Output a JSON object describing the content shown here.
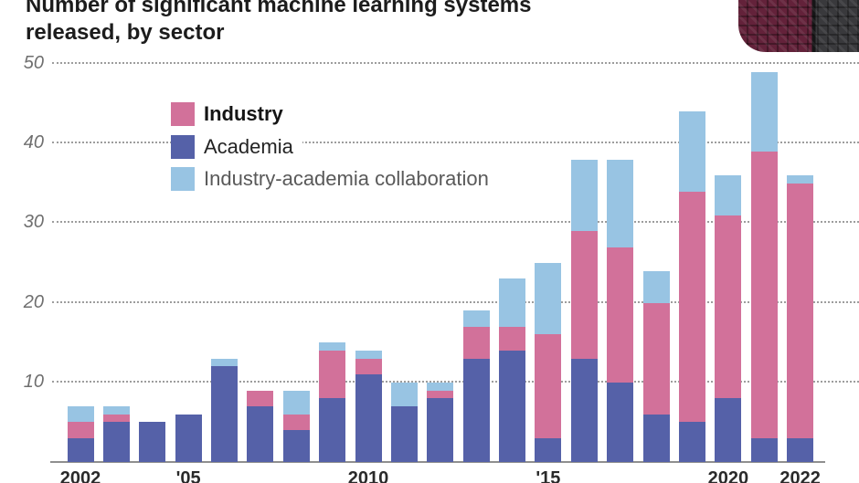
{
  "title": {
    "line1": "Number of significant machine learning systems",
    "line2": "released, by sector"
  },
  "colors": {
    "industry": "#d2719a",
    "academia": "#5561a8",
    "collaboration": "#98c4e3",
    "grid_dots": "#9d9d9d",
    "axis_line": "#8f8f8f",
    "y_label": "#6f6f6f",
    "x_label": "#2a2a2a",
    "title_text": "#1c1c1c",
    "logo_maroon": "#63223a",
    "logo_dark": "#39393c"
  },
  "legend": {
    "items": [
      {
        "label": "Industry",
        "color_key": "industry"
      },
      {
        "label": "Academia",
        "color_key": "academia"
      },
      {
        "label": "Industry-academia collaboration",
        "color_key": "collaboration"
      }
    ]
  },
  "chart_data": {
    "type": "bar",
    "stacked": true,
    "title": "Number of significant machine learning systems released, by sector",
    "xlabel": "",
    "ylabel": "",
    "ylim": [
      0,
      50
    ],
    "y_ticks": [
      10,
      20,
      30,
      40,
      50
    ],
    "gridlines": "dotted-horizontal",
    "legend_position": "inside-top-left",
    "categories": [
      2002,
      2003,
      2004,
      2005,
      2006,
      2007,
      2008,
      2009,
      2010,
      2011,
      2012,
      2013,
      2014,
      2015,
      2016,
      2017,
      2018,
      2019,
      2020,
      2021,
      2022
    ],
    "x_tick_labels": [
      {
        "index": 0,
        "label": "2002"
      },
      {
        "index": 3,
        "label": "'05"
      },
      {
        "index": 8,
        "label": "2010"
      },
      {
        "index": 13,
        "label": "'15"
      },
      {
        "index": 18,
        "label": "2020"
      },
      {
        "index": 20,
        "label": "2022"
      }
    ],
    "stack_order_bottom_to_top": [
      "Academia",
      "Industry",
      "Industry-academia collaboration"
    ],
    "series": [
      {
        "name": "Academia",
        "color_key": "academia",
        "values": [
          3,
          5,
          5,
          6,
          12,
          7,
          4,
          8,
          11,
          7,
          8,
          13,
          14,
          3,
          13,
          10,
          6,
          5,
          8,
          3,
          3
        ]
      },
      {
        "name": "Industry",
        "color_key": "industry",
        "values": [
          2,
          1,
          0,
          0,
          0,
          2,
          2,
          6,
          2,
          0,
          1,
          4,
          3,
          13,
          16,
          17,
          14,
          29,
          23,
          36,
          32
        ]
      },
      {
        "name": "Industry-academia collaboration",
        "color_key": "collaboration",
        "values": [
          2,
          1,
          0,
          0,
          1,
          0,
          3,
          1,
          1,
          3,
          1,
          2,
          6,
          9,
          9,
          11,
          4,
          10,
          5,
          10,
          1
        ]
      }
    ],
    "totals": [
      7,
      7,
      5,
      6,
      13,
      9,
      9,
      15,
      14,
      10,
      10,
      19,
      23,
      25,
      38,
      38,
      24,
      44,
      36,
      49,
      36
    ]
  }
}
